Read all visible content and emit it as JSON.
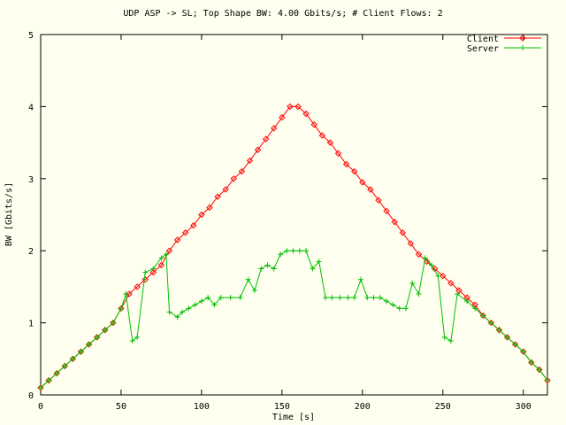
{
  "chart_data": {
    "type": "line",
    "title": "UDP ASP -> SL; Top Shape BW: 4.00 Gbits/s; # Client Flows: 2",
    "xlabel": "Time [s]",
    "ylabel": "BW [Gbits/s]",
    "xlim": [
      0,
      315
    ],
    "ylim": [
      0,
      5
    ],
    "xticks": [
      0,
      50,
      100,
      150,
      200,
      250,
      300
    ],
    "yticks": [
      0,
      1,
      2,
      3,
      4,
      5
    ],
    "grid": false,
    "legend_position": "top-right",
    "series": [
      {
        "name": "Client",
        "color": "#ff0000",
        "marker": "diamond",
        "points": [
          [
            0,
            0.1
          ],
          [
            5,
            0.2
          ],
          [
            10,
            0.3
          ],
          [
            15,
            0.4
          ],
          [
            20,
            0.5
          ],
          [
            25,
            0.6
          ],
          [
            30,
            0.7
          ],
          [
            35,
            0.8
          ],
          [
            40,
            0.9
          ],
          [
            45,
            1.0
          ],
          [
            50,
            1.2
          ],
          [
            55,
            1.4
          ],
          [
            60,
            1.5
          ],
          [
            65,
            1.6
          ],
          [
            70,
            1.7
          ],
          [
            75,
            1.8
          ],
          [
            80,
            2.0
          ],
          [
            85,
            2.15
          ],
          [
            90,
            2.25
          ],
          [
            95,
            2.35
          ],
          [
            100,
            2.5
          ],
          [
            105,
            2.6
          ],
          [
            110,
            2.75
          ],
          [
            115,
            2.85
          ],
          [
            120,
            3.0
          ],
          [
            125,
            3.1
          ],
          [
            130,
            3.25
          ],
          [
            135,
            3.4
          ],
          [
            140,
            3.55
          ],
          [
            145,
            3.7
          ],
          [
            150,
            3.85
          ],
          [
            155,
            4.0
          ],
          [
            160,
            4.0
          ],
          [
            165,
            3.9
          ],
          [
            170,
            3.75
          ],
          [
            175,
            3.6
          ],
          [
            180,
            3.5
          ],
          [
            185,
            3.35
          ],
          [
            190,
            3.2
          ],
          [
            195,
            3.1
          ],
          [
            200,
            2.95
          ],
          [
            205,
            2.85
          ],
          [
            210,
            2.7
          ],
          [
            215,
            2.55
          ],
          [
            220,
            2.4
          ],
          [
            225,
            2.25
          ],
          [
            230,
            2.1
          ],
          [
            235,
            1.95
          ],
          [
            240,
            1.85
          ],
          [
            245,
            1.75
          ],
          [
            250,
            1.65
          ],
          [
            255,
            1.55
          ],
          [
            260,
            1.45
          ],
          [
            265,
            1.35
          ],
          [
            270,
            1.25
          ],
          [
            275,
            1.1
          ],
          [
            280,
            1.0
          ],
          [
            285,
            0.9
          ],
          [
            290,
            0.8
          ],
          [
            295,
            0.7
          ],
          [
            300,
            0.6
          ],
          [
            305,
            0.45
          ],
          [
            310,
            0.35
          ],
          [
            315,
            0.2
          ]
        ]
      },
      {
        "name": "Server",
        "color": "#00c000",
        "marker": "plus",
        "points": [
          [
            0,
            0.1
          ],
          [
            5,
            0.2
          ],
          [
            10,
            0.3
          ],
          [
            15,
            0.4
          ],
          [
            20,
            0.5
          ],
          [
            25,
            0.6
          ],
          [
            30,
            0.7
          ],
          [
            35,
            0.8
          ],
          [
            40,
            0.9
          ],
          [
            45,
            1.0
          ],
          [
            50,
            1.2
          ],
          [
            53,
            1.4
          ],
          [
            57,
            0.75
          ],
          [
            60,
            0.8
          ],
          [
            65,
            1.7
          ],
          [
            70,
            1.75
          ],
          [
            75,
            1.9
          ],
          [
            78,
            1.95
          ],
          [
            80,
            1.15
          ],
          [
            85,
            1.08
          ],
          [
            88,
            1.15
          ],
          [
            92,
            1.2
          ],
          [
            96,
            1.25
          ],
          [
            100,
            1.3
          ],
          [
            104,
            1.35
          ],
          [
            108,
            1.25
          ],
          [
            112,
            1.35
          ],
          [
            118,
            1.35
          ],
          [
            124,
            1.35
          ],
          [
            129,
            1.6
          ],
          [
            133,
            1.45
          ],
          [
            137,
            1.75
          ],
          [
            141,
            1.8
          ],
          [
            145,
            1.75
          ],
          [
            149,
            1.95
          ],
          [
            153,
            2.0
          ],
          [
            157,
            2.0
          ],
          [
            161,
            2.0
          ],
          [
            165,
            2.0
          ],
          [
            169,
            1.75
          ],
          [
            173,
            1.85
          ],
          [
            177,
            1.35
          ],
          [
            181,
            1.35
          ],
          [
            186,
            1.35
          ],
          [
            191,
            1.35
          ],
          [
            195,
            1.35
          ],
          [
            199,
            1.6
          ],
          [
            203,
            1.35
          ],
          [
            207,
            1.35
          ],
          [
            211,
            1.35
          ],
          [
            215,
            1.3
          ],
          [
            219,
            1.25
          ],
          [
            223,
            1.2
          ],
          [
            227,
            1.2
          ],
          [
            231,
            1.55
          ],
          [
            235,
            1.4
          ],
          [
            239,
            1.9
          ],
          [
            243,
            1.8
          ],
          [
            247,
            1.65
          ],
          [
            251,
            0.8
          ],
          [
            255,
            0.75
          ],
          [
            259,
            1.4
          ],
          [
            265,
            1.3
          ],
          [
            270,
            1.2
          ],
          [
            275,
            1.1
          ],
          [
            280,
            1.0
          ],
          [
            285,
            0.9
          ],
          [
            290,
            0.8
          ],
          [
            295,
            0.7
          ],
          [
            300,
            0.6
          ],
          [
            305,
            0.45
          ],
          [
            310,
            0.35
          ],
          [
            315,
            0.2
          ]
        ]
      }
    ]
  }
}
